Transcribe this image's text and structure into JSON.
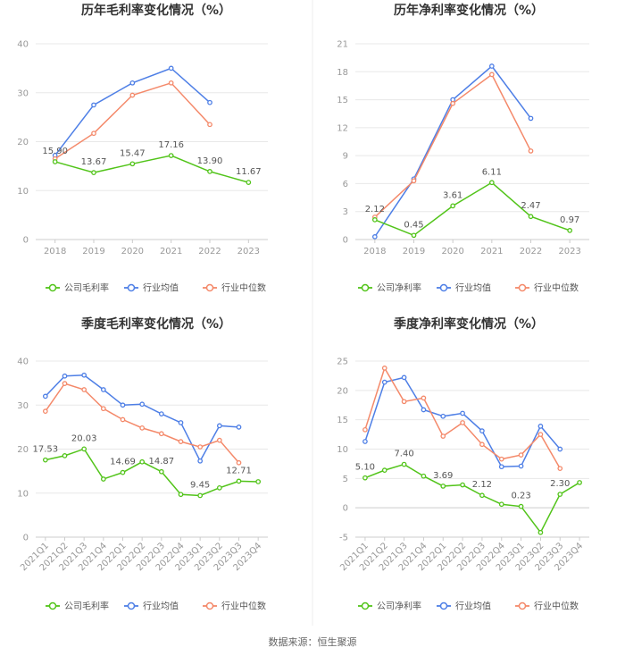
{
  "source_text": "数据来源：恒生聚源",
  "colors": {
    "company": "#52c41a",
    "mean": "#4e7fe6",
    "median": "#f4896a"
  },
  "chart_data": [
    {
      "type": "line",
      "title": "历年毛利率变化情况（%）",
      "categories": [
        "2018",
        "2019",
        "2020",
        "2021",
        "2022",
        "2023"
      ],
      "ylim": [
        0,
        40
      ],
      "yticks": [
        0,
        10,
        20,
        30,
        40
      ],
      "ytick_labels": [
        "0",
        "10",
        "20",
        "30",
        "40"
      ],
      "series": [
        {
          "name": "公司毛利率",
          "values": [
            15.9,
            13.67,
            15.47,
            17.16,
            13.9,
            11.67
          ],
          "labels": [
            "15.90",
            "13.67",
            "15.47",
            "17.16",
            "13.90",
            "11.67"
          ]
        },
        {
          "name": "行业均值",
          "values": [
            17.2,
            27.5,
            32.0,
            35.0,
            28.0,
            null
          ]
        },
        {
          "name": "行业中位数",
          "values": [
            16.5,
            21.7,
            29.5,
            32.0,
            23.5,
            null
          ]
        }
      ]
    },
    {
      "type": "line",
      "title": "历年净利率变化情况（%）",
      "categories": [
        "2018",
        "2019",
        "2020",
        "2021",
        "2022",
        "2023"
      ],
      "ylim": [
        0,
        21
      ],
      "yticks": [
        0,
        3,
        6,
        9,
        12,
        15,
        18,
        21
      ],
      "ytick_labels": [
        "0",
        "3",
        "6",
        "9",
        "12",
        "15",
        "18",
        "21"
      ],
      "series": [
        {
          "name": "公司净利率",
          "values": [
            2.12,
            0.45,
            3.61,
            6.11,
            2.47,
            0.97
          ],
          "labels": [
            "2.12",
            "0.45",
            "3.61",
            "6.11",
            "2.47",
            "0.97"
          ]
        },
        {
          "name": "行业均值",
          "values": [
            0.3,
            6.5,
            15.0,
            18.6,
            13.0,
            null
          ]
        },
        {
          "name": "行业中位数",
          "values": [
            2.4,
            6.3,
            14.6,
            17.7,
            9.5,
            null
          ]
        }
      ]
    },
    {
      "type": "line",
      "title": "季度毛利率变化情况（%）",
      "categories": [
        "2021Q1",
        "2021Q2",
        "2021Q3",
        "2021Q4",
        "2022Q1",
        "2022Q2",
        "2022Q3",
        "2022Q4",
        "2023Q1",
        "2023Q2",
        "2023Q3",
        "2023Q4"
      ],
      "ylim": [
        0,
        40
      ],
      "yticks": [
        0,
        10,
        20,
        30,
        40
      ],
      "ytick_labels": [
        "0",
        "10",
        "20",
        "30",
        "40"
      ],
      "series": [
        {
          "name": "公司毛利率",
          "values": [
            17.53,
            18.5,
            20.03,
            13.2,
            14.69,
            17.1,
            14.87,
            9.7,
            9.45,
            11.2,
            12.71,
            12.6
          ],
          "labels": [
            "17.53",
            "",
            "20.03",
            "",
            "14.69",
            "",
            "14.87",
            "",
            "9.45",
            "",
            "12.71",
            ""
          ]
        },
        {
          "name": "行业均值",
          "values": [
            32.0,
            36.6,
            36.8,
            33.5,
            30.0,
            30.2,
            28.0,
            26.0,
            17.3,
            25.3,
            25.0,
            null
          ]
        },
        {
          "name": "行业中位数",
          "values": [
            28.6,
            34.9,
            33.5,
            29.2,
            26.7,
            24.8,
            23.5,
            21.7,
            20.5,
            22.0,
            16.9,
            null
          ]
        }
      ]
    },
    {
      "type": "line",
      "title": "季度净利率变化情况（%）",
      "categories": [
        "2021Q1",
        "2021Q2",
        "2021Q3",
        "2021Q4",
        "2022Q1",
        "2022Q2",
        "2022Q3",
        "2022Q4",
        "2023Q1",
        "2023Q2",
        "2023Q3",
        "2023Q4"
      ],
      "ylim": [
        -5,
        25
      ],
      "yticks": [
        -5,
        0,
        5,
        10,
        15,
        20,
        25
      ],
      "ytick_labels": [
        "-5",
        "0",
        "5",
        "10",
        "15",
        "20",
        "25"
      ],
      "series": [
        {
          "name": "公司净利率",
          "values": [
            5.1,
            6.4,
            7.4,
            5.4,
            3.69,
            3.9,
            2.12,
            0.6,
            0.23,
            -4.2,
            2.3,
            4.3
          ],
          "labels": [
            "5.10",
            "",
            "7.40",
            "",
            "3.69",
            "",
            "2.12",
            "",
            "0.23",
            "",
            "2.30",
            ""
          ]
        },
        {
          "name": "行业均值",
          "values": [
            11.3,
            21.4,
            22.2,
            16.7,
            15.6,
            16.1,
            13.1,
            7.0,
            7.1,
            13.9,
            10.0,
            null
          ]
        },
        {
          "name": "行业中位数",
          "values": [
            13.3,
            23.8,
            18.1,
            18.7,
            12.2,
            14.5,
            10.8,
            8.3,
            9.0,
            12.5,
            6.7,
            null
          ]
        }
      ]
    }
  ]
}
